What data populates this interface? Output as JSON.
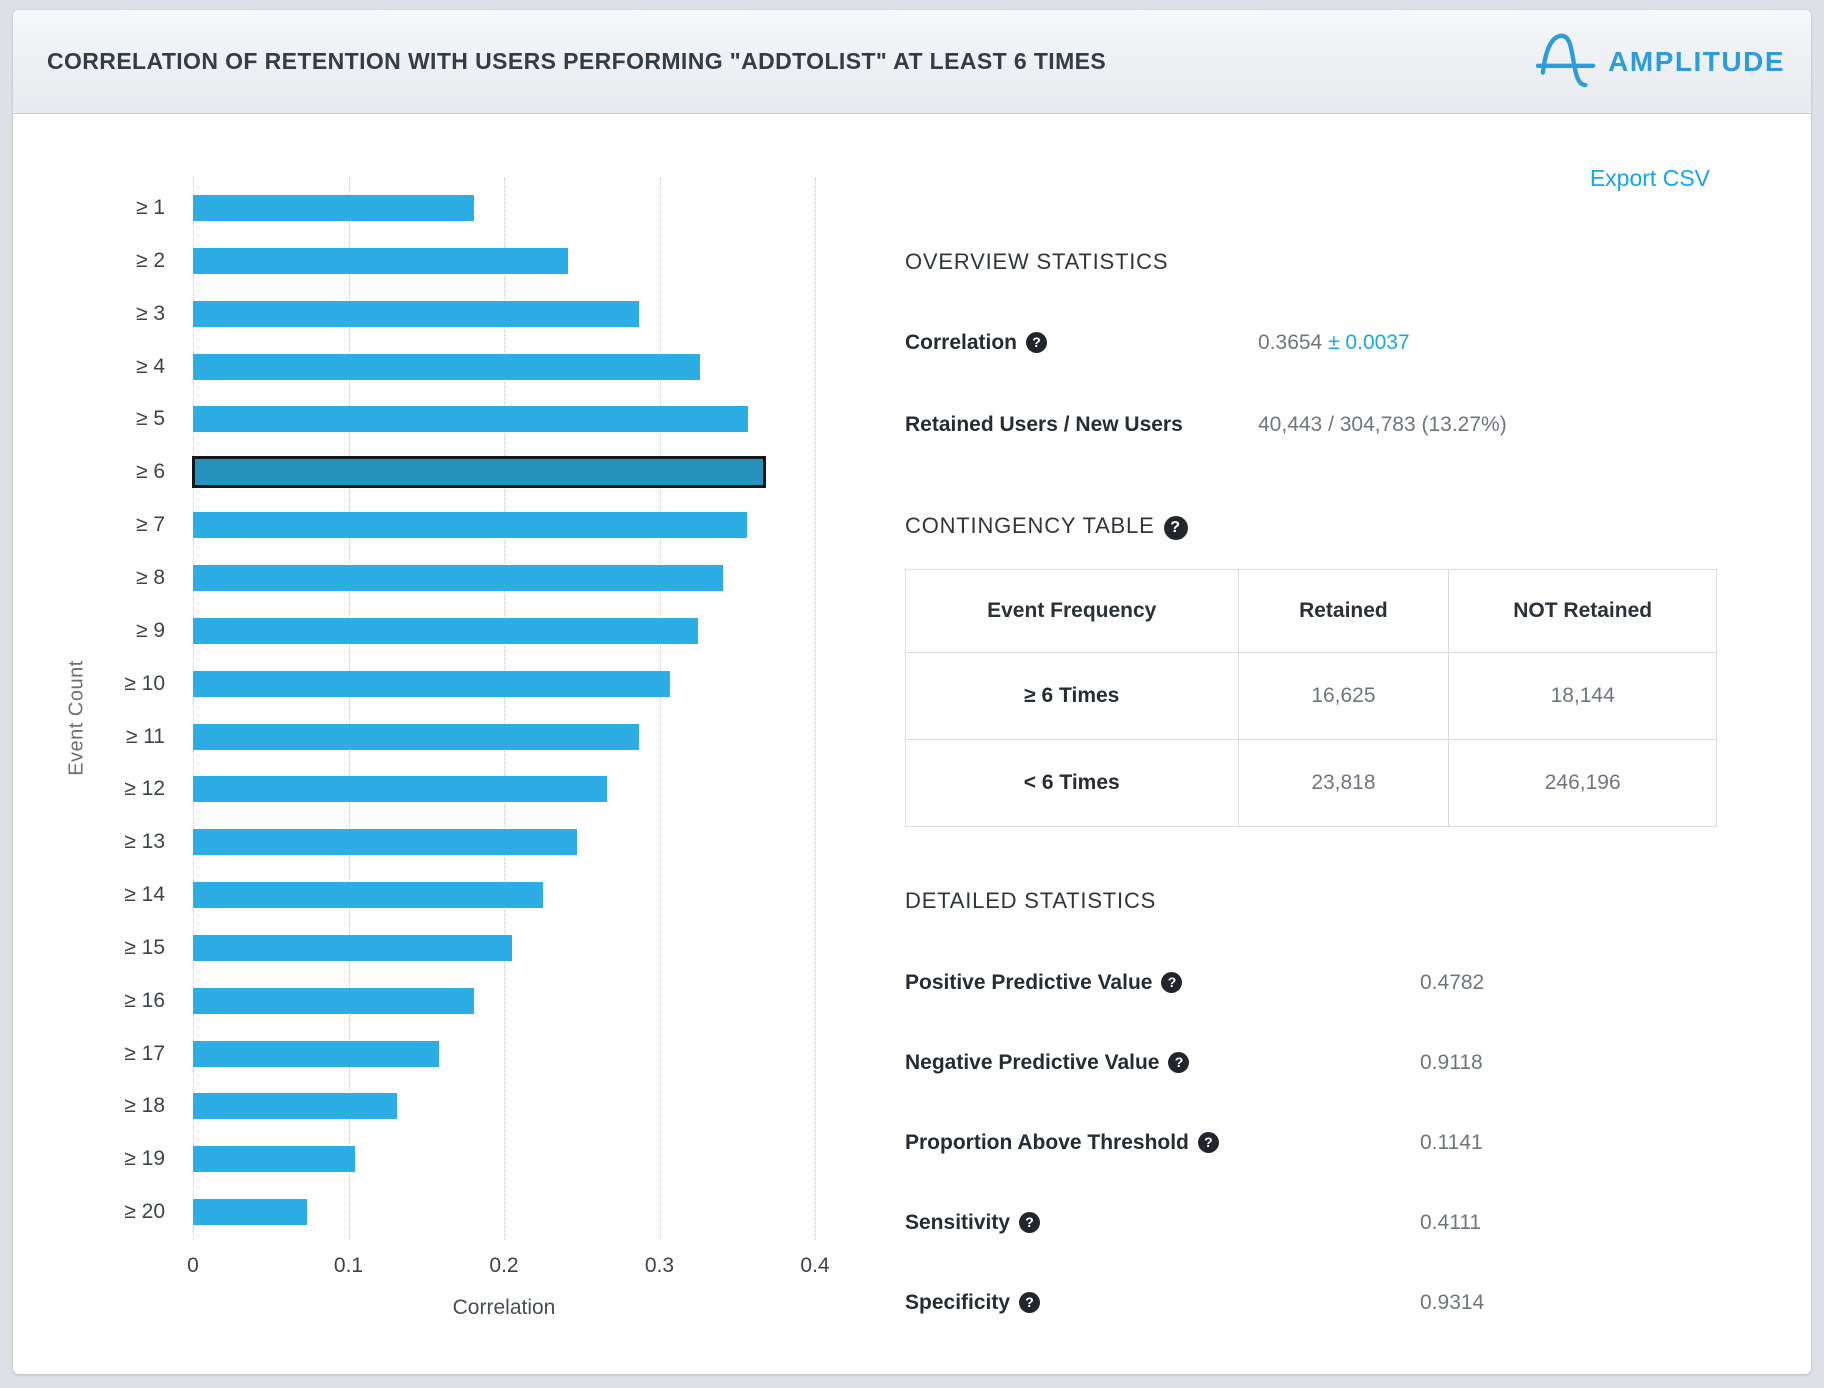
{
  "header": {
    "title": "CORRELATION OF RETENTION WITH USERS PERFORMING \"ADDTOLIST\" AT LEAST 6 TIMES",
    "brand": "AMPLITUDE"
  },
  "export_label": "Export CSV",
  "colors": {
    "accent_blue": "#18a6ea",
    "logo_blue": "#2d9cdb",
    "bar_blue": "#2cade4",
    "bar_highlight": "#2692bb",
    "value_gray": "#70757d"
  },
  "chart_data": {
    "type": "bar",
    "orientation": "horizontal",
    "title": "",
    "xlabel": "Correlation",
    "ylabel": "Event Count",
    "categories": [
      "≥ 1",
      "≥ 2",
      "≥ 3",
      "≥ 4",
      "≥ 5",
      "≥ 6",
      "≥ 7",
      "≥ 8",
      "≥ 9",
      "≥ 10",
      "≥ 11",
      "≥ 12",
      "≥ 13",
      "≥ 14",
      "≥ 15",
      "≥ 16",
      "≥ 17",
      "≥ 18",
      "≥ 19",
      "≥ 20"
    ],
    "values": [
      0.181,
      0.241,
      0.287,
      0.326,
      0.357,
      0.3654,
      0.356,
      0.341,
      0.325,
      0.307,
      0.287,
      0.266,
      0.247,
      0.225,
      0.205,
      0.181,
      0.158,
      0.131,
      0.104,
      0.073
    ],
    "highlight_index": 5,
    "highlight_category": "≥ 6",
    "xlim": [
      0,
      0.4
    ],
    "xticks": [
      0,
      0.1,
      0.2,
      0.3,
      0.4
    ],
    "xtick_labels": [
      "0",
      "0.1",
      "0.2",
      "0.3",
      "0.4"
    ],
    "grid": "dotted-vertical",
    "legend": "none"
  },
  "overview": {
    "heading": "OVERVIEW STATISTICS",
    "rows": [
      {
        "label": "Correlation",
        "has_help": true,
        "value": "0.3654",
        "suffix": "± 0.0037"
      },
      {
        "label": "Retained Users / New Users",
        "has_help": false,
        "value": "40,443 / 304,783 (13.27%)",
        "suffix": ""
      }
    ]
  },
  "contingency": {
    "heading": "CONTINGENCY TABLE",
    "has_help": true,
    "columns": [
      "Event Frequency",
      "Retained",
      "NOT Retained"
    ],
    "rows": [
      [
        "≥ 6 Times",
        "16,625",
        "18,144"
      ],
      [
        "< 6 Times",
        "23,818",
        "246,196"
      ]
    ]
  },
  "detailed": {
    "heading": "DETAILED STATISTICS",
    "rows": [
      {
        "label": "Positive Predictive Value",
        "has_help": true,
        "value": "0.4782"
      },
      {
        "label": "Negative Predictive Value",
        "has_help": true,
        "value": "0.9118"
      },
      {
        "label": "Proportion Above Threshold",
        "has_help": true,
        "value": "0.1141"
      },
      {
        "label": "Sensitivity",
        "has_help": true,
        "value": "0.4111"
      },
      {
        "label": "Specificity",
        "has_help": true,
        "value": "0.9314"
      }
    ]
  },
  "help_glyph": "?"
}
